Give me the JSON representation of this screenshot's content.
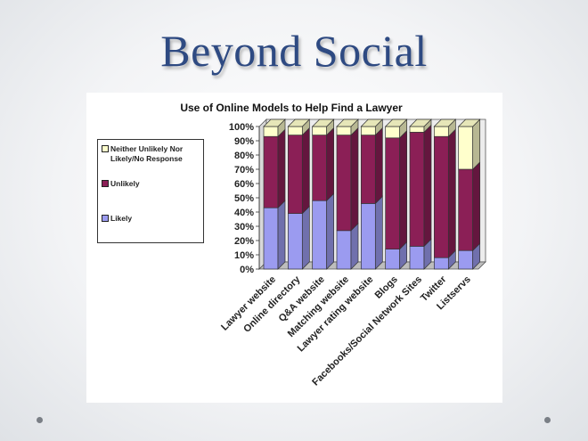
{
  "slide": {
    "title": "Beyond Social"
  },
  "colors": {
    "likely": "#9b9bf0",
    "unlikely": "#8b1f56",
    "neither": "#ffffcc",
    "title": "#2e4a82"
  },
  "chart_data": {
    "type": "bar",
    "stacked": true,
    "three_d": true,
    "title": "Use of Online Models to Help Find a Lawyer",
    "categories": [
      "Lawyer website",
      "Online directory",
      "Q&A website",
      "Matching website",
      "Lawyer rating website",
      "Blogs",
      "Facebooks/Social Network Sites",
      "Twitter",
      "Listservs"
    ],
    "series": [
      {
        "name": "Likely",
        "color": "#9b9bf0",
        "values": [
          43,
          39,
          48,
          27,
          46,
          14,
          16,
          8,
          13
        ]
      },
      {
        "name": "Unlikely",
        "color": "#8b1f56",
        "values": [
          50,
          55,
          46,
          67,
          48,
          78,
          80,
          85,
          57
        ]
      },
      {
        "name": "Neither Unlikely Nor Likely/No Response",
        "color": "#ffffcc",
        "values": [
          7,
          6,
          6,
          6,
          6,
          8,
          4,
          7,
          30
        ]
      }
    ],
    "y_ticks": [
      "0%",
      "10%",
      "20%",
      "30%",
      "40%",
      "50%",
      "60%",
      "70%",
      "80%",
      "90%",
      "100%"
    ],
    "ylim": [
      0,
      100
    ],
    "legend": "left",
    "grid": false
  }
}
